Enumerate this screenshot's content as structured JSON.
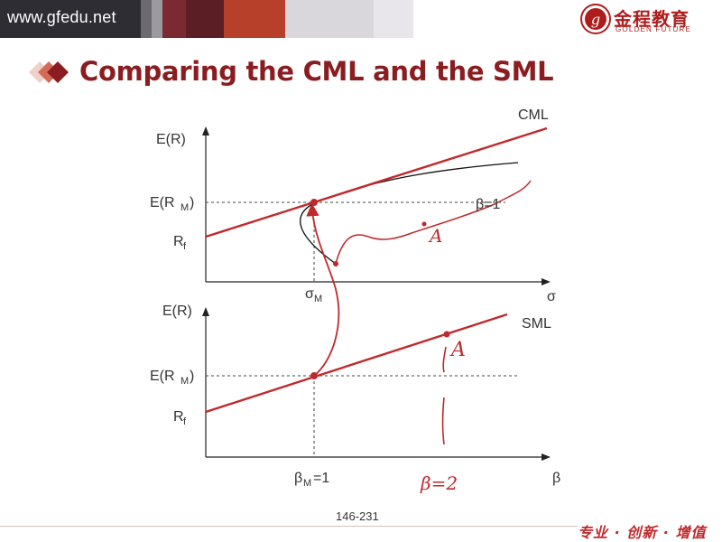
{
  "header": {
    "site_url": "www.gfedu.net",
    "logo_cn": "金程教育",
    "logo_en": "GOLDEN FUTURE"
  },
  "slide": {
    "title": "Comparing the CML and the SML",
    "page_number": "146-231",
    "slogan": "专业 · 创新 · 增值"
  },
  "top_graph": {
    "line_label": "CML",
    "y_axis_label": "E(R)",
    "x_axis_label": "σ",
    "y_tick_market": "E(R",
    "y_tick_market_sub": "M",
    "y_tick_rf": "R",
    "y_tick_rf_sub": "f",
    "x_tick_market": "σ",
    "x_tick_market_sub": "M",
    "beta_note": "β=1",
    "handwritten_point": "A"
  },
  "bottom_graph": {
    "line_label": "SML",
    "y_axis_label": "E(R)",
    "x_axis_label": "β",
    "y_tick_market": "E(R",
    "y_tick_market_sub": "M",
    "y_tick_rf": "R",
    "y_tick_rf_sub": "f",
    "x_tick_market": "β",
    "x_tick_market_sub": "M",
    "x_tick_market_value": "=1",
    "handwritten_point": "A",
    "handwritten_beta": "β=2"
  },
  "colors": {
    "accent_red": "#c0292b",
    "title_red": "#8b1d20",
    "header_dark": "#2e2d33"
  }
}
